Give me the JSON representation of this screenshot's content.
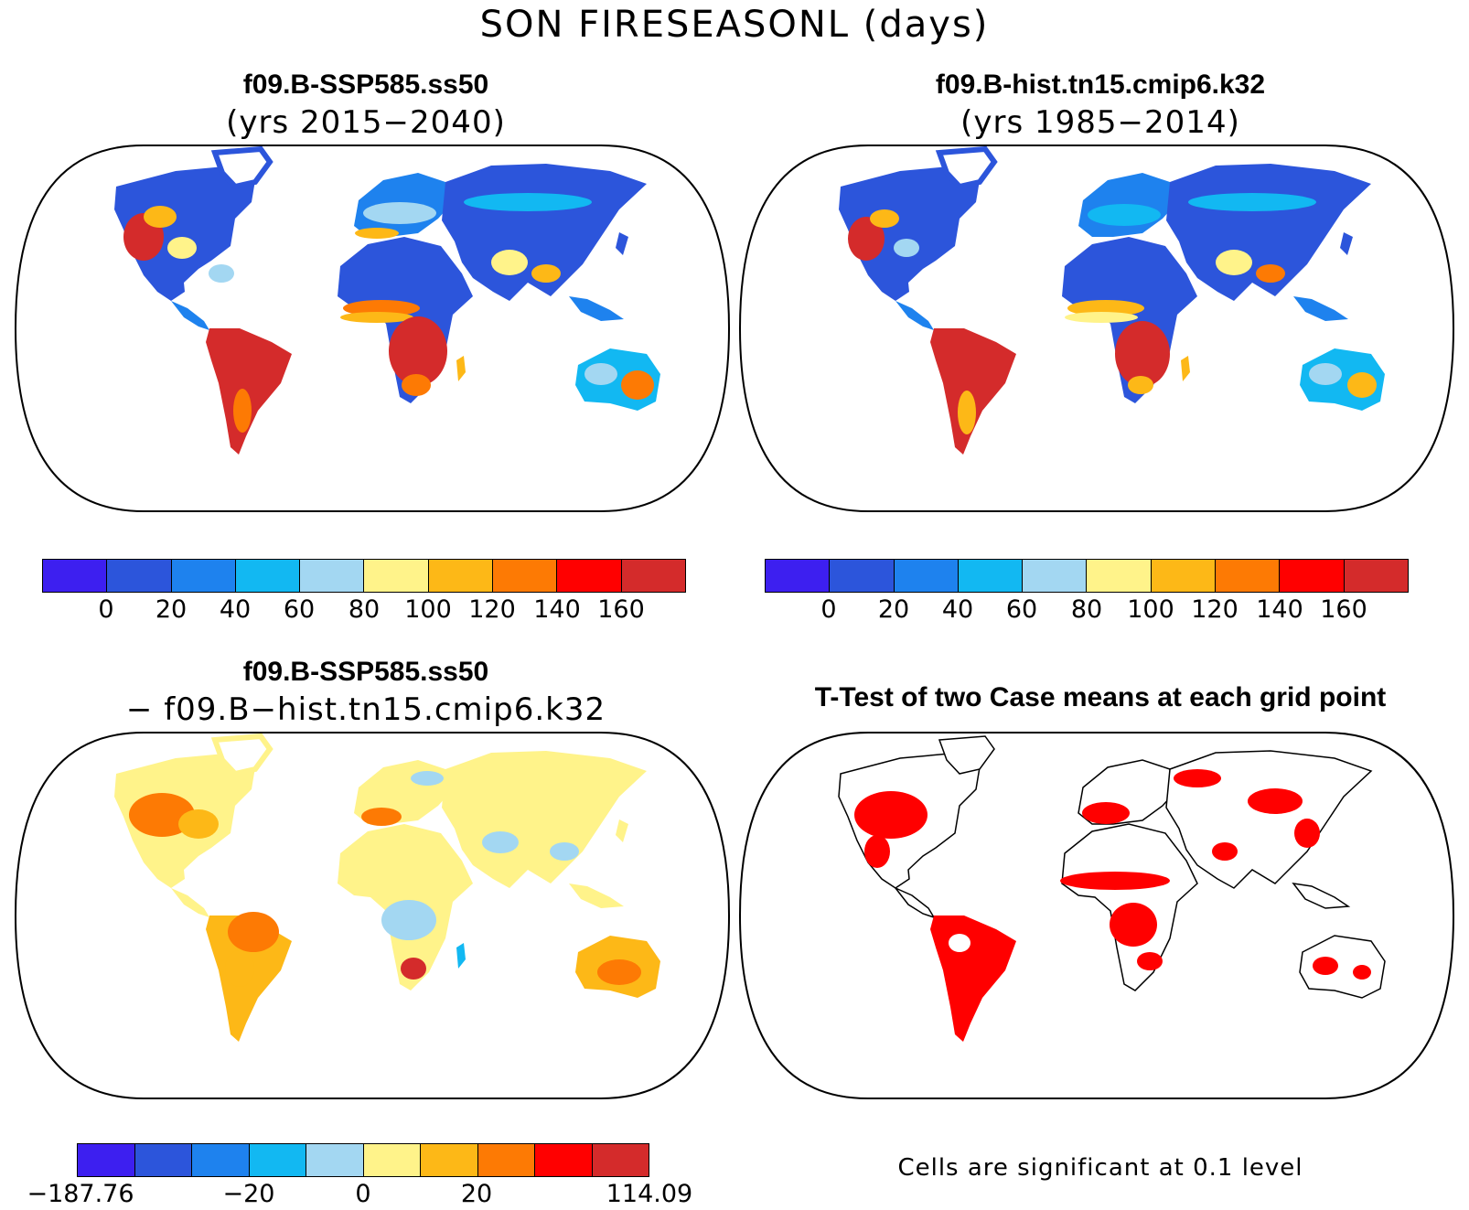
{
  "title": "SON FIRESEASONL (days)",
  "palette": [
    "#3d1ff0",
    "#2c55db",
    "#1e82ee",
    "#12b8f2",
    "#a3d7f2",
    "#fff38a",
    "#fdb817",
    "#fd7a04",
    "#ff0000",
    "#d42b2b"
  ],
  "panels": {
    "top_left": {
      "title": "f09.B-SSP585.ss50",
      "subtitle": "(yrs 2015−2040)",
      "colorbar_ticks": [
        "0",
        "20",
        "40",
        "60",
        "80",
        "100",
        "120",
        "140",
        "160"
      ]
    },
    "top_right": {
      "title": "f09.B-hist.tn15.cmip6.k32",
      "subtitle": "(yrs 1985−2014)",
      "colorbar_ticks": [
        "0",
        "20",
        "40",
        "60",
        "80",
        "100",
        "120",
        "140",
        "160"
      ]
    },
    "bottom_left": {
      "title": "f09.B-SSP585.ss50",
      "subtitle": "− f09.B−hist.tn15.cmip6.k32",
      "colorbar_ticks": [
        "−187.76",
        "−20",
        "0",
        "20",
        "114.09"
      ]
    },
    "bottom_right": {
      "title": "T-Test of two Case means at each grid point",
      "note": "Cells are significant at 0.1 level",
      "significant_color": "#ff0000"
    }
  }
}
